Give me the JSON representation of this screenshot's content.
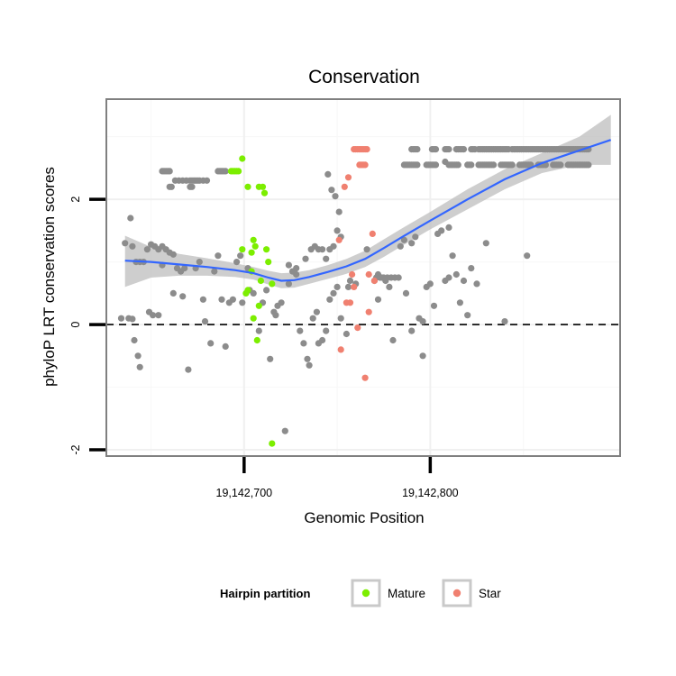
{
  "chart_data": {
    "type": "scatter",
    "title": "Conservation",
    "xlabel": "Genomic Position",
    "ylabel": "phyloP LRT conservation scores",
    "xlim": [
      19142626,
      19142902
    ],
    "ylim": [
      -2.1,
      3.6
    ],
    "x_ticks": [
      {
        "value": 19142700,
        "label": "19,142,700"
      },
      {
        "value": 19142800,
        "label": "19,142,800"
      }
    ],
    "y_ticks": [
      {
        "value": -2,
        "label": "-2"
      },
      {
        "value": 0,
        "label": "0"
      },
      {
        "value": 2,
        "label": "2"
      }
    ],
    "reference_line": {
      "y": 0,
      "style": "dashed"
    },
    "grid": true,
    "legend": {
      "title": "Hairpin partition",
      "position": "bottom",
      "items": [
        {
          "label": "Mature",
          "color": "#7cee00"
        },
        {
          "label": "Star",
          "color": "#f08070"
        }
      ]
    },
    "colors": {
      "other": "#8c8c8c",
      "mature": "#7cee00",
      "star": "#f08070",
      "smooth_line": "#3366ff",
      "ribbon": "#bdbdbd"
    },
    "series": [
      {
        "group": "other",
        "points": [
          [
            19142639,
            1.7
          ],
          [
            19142640,
            1.25
          ],
          [
            19142638,
            0.1
          ],
          [
            19142640,
            0.09
          ],
          [
            19142641,
            -0.25
          ],
          [
            19142643,
            -0.5
          ],
          [
            19142644,
            -0.68
          ],
          [
            19142642,
            1.0
          ],
          [
            19142644,
            1.0
          ],
          [
            19142646,
            1.0
          ],
          [
            19142648,
            1.2
          ],
          [
            19142650,
            1.28
          ],
          [
            19142652,
            1.25
          ],
          [
            19142654,
            1.2
          ],
          [
            19142656,
            1.25
          ],
          [
            19142658,
            1.2
          ],
          [
            19142660,
            1.15
          ],
          [
            19142662,
            1.12
          ],
          [
            19142649,
            0.2
          ],
          [
            19142651,
            0.15
          ],
          [
            19142654,
            0.15
          ],
          [
            19142662,
            0.5
          ],
          [
            19142667,
            0.45
          ],
          [
            19142664,
            0.9
          ],
          [
            19142666,
            0.85
          ],
          [
            19142670,
            -0.72
          ],
          [
            19142674,
            0.9
          ],
          [
            19142676,
            1.0
          ],
          [
            19142678,
            0.4
          ],
          [
            19142679,
            0.05
          ],
          [
            19142682,
            -0.3
          ],
          [
            19142684,
            0.85
          ],
          [
            19142686,
            1.1
          ],
          [
            19142688,
            0.4
          ],
          [
            19142690,
            -0.35
          ],
          [
            19142692,
            0.35
          ],
          [
            19142694,
            0.4
          ],
          [
            19142696,
            1.0
          ],
          [
            19142699,
            0.35
          ],
          [
            19142698,
            1.1
          ],
          [
            19142703,
            0.55
          ],
          [
            19142705,
            0.5
          ],
          [
            19142708,
            -0.1
          ],
          [
            19142710,
            0.35
          ],
          [
            19142712,
            0.55
          ],
          [
            19142714,
            -0.55
          ],
          [
            19142716,
            0.2
          ],
          [
            19142717,
            0.15
          ],
          [
            19142718,
            0.3
          ],
          [
            19142720,
            0.35
          ],
          [
            19142722,
            -1.7
          ],
          [
            19142724,
            0.65
          ],
          [
            19142726,
            0.85
          ],
          [
            19142728,
            0.8
          ],
          [
            19142730,
            -0.1
          ],
          [
            19142732,
            -0.3
          ],
          [
            19142734,
            -0.55
          ],
          [
            19142735,
            -0.65
          ],
          [
            19142737,
            0.1
          ],
          [
            19142739,
            0.2
          ],
          [
            19142740,
            -0.3
          ],
          [
            19142742,
            -0.25
          ],
          [
            19142744,
            -0.1
          ],
          [
            19142746,
            0.4
          ],
          [
            19142748,
            0.5
          ],
          [
            19142750,
            0.6
          ],
          [
            19142752,
            0.1
          ],
          [
            19142755,
            -0.15
          ],
          [
            19142757,
            0.7
          ],
          [
            19142760,
            0.65
          ],
          [
            19142724,
            0.95
          ],
          [
            19142728,
            0.9
          ],
          [
            19142733,
            1.05
          ],
          [
            19142736,
            1.2
          ],
          [
            19142738,
            1.25
          ],
          [
            19142740,
            1.2
          ],
          [
            19142742,
            1.2
          ],
          [
            19142744,
            1.05
          ],
          [
            19142746,
            1.2
          ],
          [
            19142748,
            1.25
          ],
          [
            19142750,
            1.5
          ],
          [
            19142752,
            1.4
          ],
          [
            19142745,
            2.4
          ],
          [
            19142747,
            2.15
          ],
          [
            19142749,
            2.05
          ],
          [
            19142751,
            1.8
          ],
          [
            19142766,
            1.2
          ],
          [
            19142772,
            0.8
          ],
          [
            19142770,
            0.7
          ],
          [
            19142772,
            0.4
          ],
          [
            19142774,
            0.75
          ],
          [
            19142776,
            0.7
          ],
          [
            19142780,
            -0.25
          ],
          [
            19142784,
            1.25
          ],
          [
            19142786,
            1.35
          ],
          [
            19142790,
            1.3
          ],
          [
            19142792,
            1.4
          ],
          [
            19142794,
            0.1
          ],
          [
            19142796,
            -0.5
          ],
          [
            19142798,
            0.6
          ],
          [
            19142800,
            0.65
          ],
          [
            19142802,
            0.3
          ],
          [
            19142806,
            1.5
          ],
          [
            19142808,
            0.7
          ],
          [
            19142810,
            0.75
          ],
          [
            19142812,
            1.1
          ],
          [
            19142814,
            0.8
          ],
          [
            19142816,
            0.35
          ],
          [
            19142818,
            0.7
          ],
          [
            19142820,
            0.15
          ],
          [
            19142825,
            0.65
          ],
          [
            19142830,
            1.3
          ],
          [
            19142852,
            1.1
          ],
          [
            19142840,
            0.05
          ],
          [
            19142796,
            0.05
          ],
          [
            19142790,
            -0.1
          ],
          [
            19142822,
            0.9
          ],
          [
            19142804,
            1.45
          ],
          [
            19142810,
            1.55
          ],
          [
            19142634,
            0.1
          ],
          [
            19142636,
            1.3
          ],
          [
            19142668,
            0.9
          ],
          [
            19142656,
            0.95
          ],
          [
            19142702,
            0.9
          ],
          [
            19142756,
            0.6
          ],
          [
            19142778,
            0.6
          ],
          [
            19142787,
            0.5
          ]
        ],
        "rows": [
          {
            "y": 2.45,
            "x": [
              19142656,
              19142657,
              19142658,
              19142659,
              19142660,
              19142686,
              19142687,
              19142688,
              19142689,
              19142690
            ]
          },
          {
            "y": 2.3,
            "x": [
              19142663,
              19142665,
              19142667,
              19142669,
              19142671,
              19142672,
              19142673,
              19142674,
              19142675,
              19142676,
              19142678,
              19142680
            ]
          },
          {
            "y": 2.2,
            "x": [
              19142660,
              19142661,
              19142671,
              19142672
            ]
          },
          {
            "y": 2.8,
            "x": [
              19142790,
              19142791,
              19142792,
              19142793,
              19142801,
              19142802,
              19142803,
              19142808,
              19142809,
              19142810,
              19142814,
              19142815,
              19142816,
              19142817,
              19142818,
              19142822,
              19142823,
              19142824,
              19142826,
              19142827,
              19142828,
              19142829,
              19142830,
              19142831,
              19142832,
              19142833,
              19142834,
              19142835,
              19142836,
              19142837,
              19142838,
              19142839,
              19142840,
              19142841,
              19142842,
              19142844,
              19142845,
              19142846,
              19142847,
              19142848,
              19142849,
              19142850,
              19142851,
              19142852,
              19142853,
              19142854,
              19142855,
              19142856,
              19142857,
              19142858,
              19142859,
              19142860,
              19142861,
              19142862,
              19142863,
              19142864,
              19142865,
              19142866,
              19142867,
              19142868,
              19142869,
              19142870,
              19142871,
              19142872,
              19142873,
              19142874,
              19142875,
              19142876,
              19142877,
              19142878,
              19142879,
              19142880,
              19142881,
              19142882,
              19142883,
              19142884,
              19142885
            ]
          },
          {
            "y": 2.55,
            "x": [
              19142786,
              19142787,
              19142788,
              19142789,
              19142790,
              19142791,
              19142792,
              19142793,
              19142798,
              19142799,
              19142800,
              19142801,
              19142802,
              19142803,
              19142810,
              19142811,
              19142812,
              19142813,
              19142814,
              19142815,
              19142820,
              19142821,
              19142822,
              19142826,
              19142827,
              19142828,
              19142829,
              19142830,
              19142831,
              19142832,
              19142833,
              19142834,
              19142838,
              19142839,
              19142840,
              19142841,
              19142842,
              19142843,
              19142844,
              19142848,
              19142849,
              19142850,
              19142851,
              19142852,
              19142853,
              19142854,
              19142858,
              19142859,
              19142860,
              19142861,
              19142862,
              19142866,
              19142867,
              19142868,
              19142869,
              19142870,
              19142874,
              19142875,
              19142876,
              19142877,
              19142878,
              19142879,
              19142880,
              19142881,
              19142882,
              19142883,
              19142884,
              19142885
            ]
          },
          {
            "y": 2.6,
            "x": [
              19142808
            ]
          },
          {
            "y": 0.75,
            "x": [
              19142771,
              19142773,
              19142775,
              19142777,
              19142779,
              19142781,
              19142783
            ]
          }
        ]
      },
      {
        "group": "mature",
        "points": [
          [
            19142693,
            2.45
          ],
          [
            19142694,
            2.45
          ],
          [
            19142695,
            2.45
          ],
          [
            19142696,
            2.45
          ],
          [
            19142697,
            2.45
          ],
          [
            19142699,
            2.65
          ],
          [
            19142702,
            2.2
          ],
          [
            19142708,
            2.2
          ],
          [
            19142710,
            2.2
          ],
          [
            19142711,
            2.1
          ],
          [
            19142705,
            1.35
          ],
          [
            19142706,
            1.25
          ],
          [
            19142699,
            1.2
          ],
          [
            19142704,
            1.15
          ],
          [
            19142712,
            1.2
          ],
          [
            19142713,
            1.0
          ],
          [
            19142704,
            0.85
          ],
          [
            19142709,
            0.7
          ],
          [
            19142715,
            0.65
          ],
          [
            19142701,
            0.5
          ],
          [
            19142702,
            0.55
          ],
          [
            19142708,
            0.3
          ],
          [
            19142705,
            0.1
          ],
          [
            19142707,
            -0.25
          ],
          [
            19142715,
            -1.9
          ]
        ]
      },
      {
        "group": "star",
        "points": [
          [
            19142759,
            2.8
          ],
          [
            19142760,
            2.8
          ],
          [
            19142761,
            2.8
          ],
          [
            19142762,
            2.8
          ],
          [
            19142763,
            2.8
          ],
          [
            19142764,
            2.8
          ],
          [
            19142765,
            2.8
          ],
          [
            19142766,
            2.8
          ],
          [
            19142762,
            2.55
          ],
          [
            19142763,
            2.55
          ],
          [
            19142764,
            2.55
          ],
          [
            19142765,
            2.55
          ],
          [
            19142756,
            2.35
          ],
          [
            19142754,
            2.2
          ],
          [
            19142751,
            1.35
          ],
          [
            19142769,
            1.45
          ],
          [
            19142758,
            0.8
          ],
          [
            19142759,
            0.6
          ],
          [
            19142767,
            0.8
          ],
          [
            19142770,
            0.7
          ],
          [
            19142757,
            0.35
          ],
          [
            19142755,
            0.35
          ],
          [
            19142767,
            0.2
          ],
          [
            19142761,
            -0.05
          ],
          [
            19142752,
            -0.4
          ],
          [
            19142765,
            -0.85
          ]
        ]
      }
    ],
    "smooth": {
      "x": [
        19142636,
        19142650,
        19142665,
        19142680,
        19142695,
        19142705,
        19142713,
        19142720,
        19142727,
        19142735,
        19142745,
        19142755,
        19142765,
        19142775,
        19142785,
        19142800,
        19142820,
        19142840,
        19142860,
        19142880,
        19142897
      ],
      "y": [
        1.02,
        1.0,
        0.96,
        0.92,
        0.87,
        0.82,
        0.75,
        0.7,
        0.71,
        0.76,
        0.84,
        0.93,
        1.05,
        1.22,
        1.4,
        1.66,
        2.0,
        2.32,
        2.58,
        2.78,
        2.95
      ],
      "lower": [
        0.6,
        0.75,
        0.78,
        0.78,
        0.76,
        0.72,
        0.64,
        0.58,
        0.59,
        0.65,
        0.73,
        0.81,
        0.92,
        1.08,
        1.26,
        1.52,
        1.84,
        2.16,
        2.42,
        2.55,
        2.55
      ],
      "upper": [
        1.42,
        1.24,
        1.13,
        1.06,
        0.98,
        0.92,
        0.86,
        0.82,
        0.83,
        0.87,
        0.95,
        1.05,
        1.18,
        1.36,
        1.54,
        1.8,
        2.16,
        2.48,
        2.74,
        3.0,
        3.35
      ]
    }
  }
}
